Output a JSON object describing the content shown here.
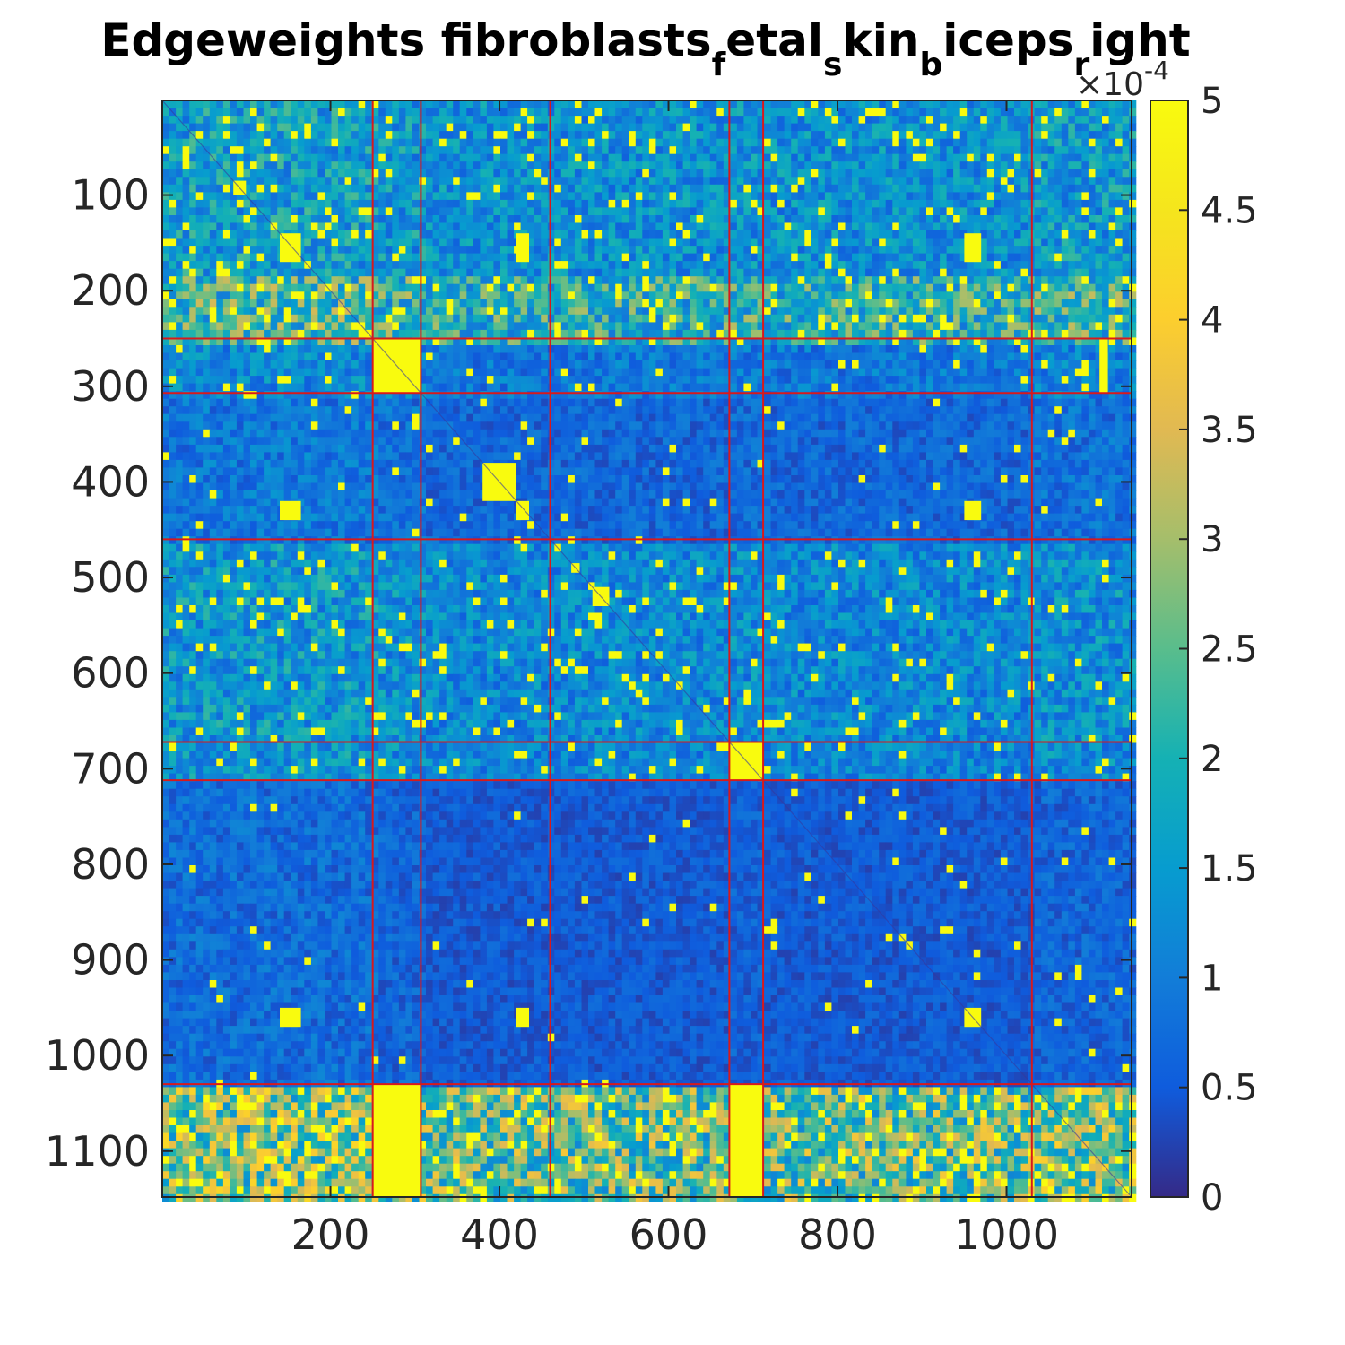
{
  "chart_data": {
    "type": "heatmap",
    "title": "Edgeweights fibroblasts",
    "title_parts": [
      {
        "text": "Edgeweights fibroblasts",
        "sub": false
      },
      {
        "text": "f",
        "sub": true
      },
      {
        "text": "etal",
        "sub": false
      },
      {
        "text": "s",
        "sub": true
      },
      {
        "text": "kin",
        "sub": false
      },
      {
        "text": "b",
        "sub": true
      },
      {
        "text": "iceps",
        "sub": false
      },
      {
        "text": "r",
        "sub": true
      },
      {
        "text": "ight",
        "sub": false
      }
    ],
    "n": 1148,
    "xlim": [
      1,
      1148
    ],
    "ylim": [
      1,
      1148
    ],
    "x_ticks": [
      200,
      400,
      600,
      800,
      1000
    ],
    "x_tick_labels": [
      "200",
      "400",
      "600",
      "800",
      "1000"
    ],
    "y_ticks": [
      100,
      200,
      300,
      400,
      500,
      600,
      700,
      800,
      900,
      1000,
      1100
    ],
    "y_tick_labels": [
      "100",
      "200",
      "300",
      "400",
      "500",
      "600",
      "700",
      "800",
      "900",
      "1000",
      "1100"
    ],
    "y_reversed": true,
    "colorbar": {
      "colormap": "parula",
      "range": [
        0,
        5
      ],
      "ticks": [
        0,
        0.5,
        1,
        1.5,
        2,
        2.5,
        3,
        3.5,
        4,
        4.5,
        5
      ],
      "tick_labels": [
        "0",
        "0.5",
        "1",
        "1.5",
        "2",
        "2.5",
        "3",
        "3.5",
        "4",
        "4.5",
        "5"
      ],
      "multiplier_prefix": "×10",
      "multiplier_exponent": "-4"
    },
    "cluster_boundaries": [
      250,
      307,
      460,
      672,
      712,
      1030
    ],
    "row_bands": [
      {
        "from": 1,
        "to": 180,
        "level": 1.6
      },
      {
        "from": 180,
        "to": 250,
        "level": 2.6
      },
      {
        "from": 250,
        "to": 307,
        "level": 1.0
      },
      {
        "from": 307,
        "to": 460,
        "level": 0.6
      },
      {
        "from": 460,
        "to": 672,
        "level": 1.4
      },
      {
        "from": 672,
        "to": 712,
        "level": 1.3
      },
      {
        "from": 712,
        "to": 1030,
        "level": 0.35
      },
      {
        "from": 1030,
        "to": 1148,
        "level": 3.4
      }
    ],
    "col_bands": [
      {
        "from": 1,
        "to": 250,
        "level": 1.5
      },
      {
        "from": 250,
        "to": 307,
        "level": 1.2
      },
      {
        "from": 307,
        "to": 460,
        "level": 0.8
      },
      {
        "from": 460,
        "to": 672,
        "level": 0.8
      },
      {
        "from": 672,
        "to": 712,
        "level": 1.0
      },
      {
        "from": 712,
        "to": 1030,
        "level": 0.8
      },
      {
        "from": 1030,
        "to": 1148,
        "level": 1.2
      }
    ],
    "saturated_blocks": [
      {
        "r0": 250,
        "r1": 307,
        "c0": 250,
        "c1": 307
      },
      {
        "r0": 672,
        "r1": 712,
        "c0": 672,
        "c1": 712
      },
      {
        "r0": 380,
        "r1": 420,
        "c0": 380,
        "c1": 420
      },
      {
        "r0": 140,
        "r1": 170,
        "c0": 140,
        "c1": 165
      },
      {
        "r0": 140,
        "r1": 170,
        "c0": 420,
        "c1": 435
      },
      {
        "r0": 140,
        "r1": 170,
        "c0": 950,
        "c1": 970
      },
      {
        "r0": 420,
        "r1": 440,
        "c0": 140,
        "c1": 165
      },
      {
        "r0": 420,
        "r1": 440,
        "c0": 420,
        "c1": 435
      },
      {
        "r0": 420,
        "r1": 440,
        "c0": 950,
        "c1": 970
      },
      {
        "r0": 950,
        "r1": 970,
        "c0": 140,
        "c1": 165
      },
      {
        "r0": 950,
        "r1": 970,
        "c0": 420,
        "c1": 435
      },
      {
        "r0": 950,
        "r1": 970,
        "c0": 950,
        "c1": 970
      },
      {
        "r0": 85,
        "r1": 100,
        "c0": 85,
        "c1": 100
      },
      {
        "r0": 510,
        "r1": 530,
        "c0": 510,
        "c1": 530
      },
      {
        "r0": 485,
        "r1": 495,
        "c0": 485,
        "c1": 495
      },
      {
        "r0": 1030,
        "r1": 1148,
        "c0": 672,
        "c1": 712
      },
      {
        "r0": 1030,
        "r1": 1148,
        "c0": 250,
        "c1": 307
      },
      {
        "r0": 250,
        "r1": 307,
        "c0": 1110,
        "c1": 1120
      }
    ],
    "grid": false
  }
}
